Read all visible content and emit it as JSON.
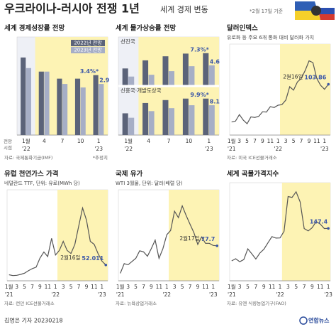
{
  "header": {
    "title": "우크라이나-러시아 전쟁 1년",
    "subtitle": "세계 경제 변동",
    "note": "*2월 17일 기준"
  },
  "chart_data": [
    {
      "type": "bar",
      "title": "세계 경제성장률 전망",
      "categories": [
        "1월",
        "4",
        "7",
        "10",
        "1"
      ],
      "x_groups": [
        {
          "label": "'22",
          "start": 0
        },
        {
          "label": "'23",
          "start": 4
        }
      ],
      "x_label": [
        "전망",
        "시점"
      ],
      "ylim": [
        0,
        5
      ],
      "highlight": {
        "start": 1
      },
      "legend": true,
      "panels": [
        {
          "series": [
            {
              "name": "2022년 전망",
              "color": "#5b6379",
              "values": [
                4.4,
                3.6,
                3.2,
                3.2,
                3.4
              ],
              "value_labels": [
                null,
                null,
                null,
                null,
                "3.4%*"
              ]
            },
            {
              "name": "2023년 전망",
              "color": "#a6aec6",
              "values": [
                3.8,
                3.6,
                2.9,
                2.7,
                2.9
              ],
              "value_labels": [
                null,
                null,
                null,
                null,
                "2.9"
              ]
            }
          ]
        }
      ],
      "source": "자료: 국제통화기금(IMF)",
      "footnote": "*추정치"
    },
    {
      "type": "bar",
      "title": "세계 물가상승률 전망",
      "categories": [
        "1월",
        "4",
        "7",
        "10",
        "1"
      ],
      "x_groups": [
        {
          "label": "'22",
          "start": 0
        },
        {
          "label": "'23",
          "start": 4
        }
      ],
      "highlight": {
        "start": 1
      },
      "legend": false,
      "panels": [
        {
          "title": "선진국",
          "ylim": [
            0,
            9
          ],
          "series": [
            {
              "color": "#5b6379",
              "values": [
                3.9,
                5.7,
                6.6,
                7.2,
                7.3
              ],
              "value_labels": [
                null,
                null,
                null,
                null,
                "7.3%*"
              ]
            },
            {
              "color": "#a6aec6",
              "values": [
                2.1,
                2.5,
                3.3,
                4.4,
                4.6
              ],
              "value_labels": [
                null,
                null,
                null,
                null,
                "4.6"
              ]
            }
          ]
        },
        {
          "title": "신흥국·개발도상국",
          "ylim": [
            0,
            11
          ],
          "series": [
            {
              "color": "#5b6379",
              "values": [
                5.9,
                8.7,
                9.5,
                9.9,
                9.9
              ],
              "value_labels": [
                null,
                null,
                null,
                null,
                "9.9%*"
              ]
            },
            {
              "color": "#a6aec6",
              "values": [
                4.7,
                6.5,
                7.3,
                8.1,
                8.1
              ],
              "value_labels": [
                null,
                null,
                null,
                null,
                "8.1"
              ]
            }
          ]
        }
      ]
    },
    {
      "type": "line",
      "title": "달러인덱스",
      "subtitle": "유로화 등 주요 6개 통화 대비 달러화 가치",
      "categories": [
        "1월",
        null,
        "3",
        null,
        "5",
        null,
        "7",
        null,
        "9",
        null,
        "11",
        null,
        "1",
        null,
        "3",
        null,
        "5",
        null,
        "7",
        null,
        "9",
        null,
        "11",
        null,
        "1",
        null
      ],
      "x_groups": [
        {
          "label": "'21",
          "start": 0
        },
        {
          "label": "'22",
          "start": 12
        },
        {
          "label": "'23",
          "start": 24
        }
      ],
      "highlight": {
        "start": 13
      },
      "color": "#555555",
      "ylim": [
        86,
        118
      ],
      "values": [
        90.6,
        90.9,
        93.2,
        91.3,
        90.0,
        92.4,
        92.2,
        92.6,
        94.2,
        94.1,
        96.0,
        95.7,
        96.5,
        96.7,
        98.3,
        103.0,
        101.8,
        104.7,
        105.9,
        108.7,
        112.1,
        111.5,
        105.9,
        103.5,
        102.1,
        103.86
      ],
      "annotation": {
        "date": "2월16일",
        "value": 103.86
      },
      "source": "자료: 미국 ICE선물거래소"
    },
    {
      "type": "line",
      "title": "유럽 천연가스 가격",
      "subtitle": "네덜란드 TTF, 단위: 유로(MWh 당)",
      "categories": [
        "1월",
        null,
        "3",
        null,
        "5",
        null,
        "7",
        null,
        "9",
        null,
        "11",
        null,
        "1",
        null,
        "3",
        null,
        "5",
        null,
        "7",
        null,
        "9",
        null,
        "11",
        null,
        "1",
        null
      ],
      "x_groups": [
        {
          "label": "'21",
          "start": 0
        },
        {
          "label": "'22",
          "start": 12
        },
        {
          "label": "'23",
          "start": 24
        }
      ],
      "highlight": {
        "start": 13
      },
      "color": "#555555",
      "ylim": [
        0,
        300
      ],
      "values": [
        20,
        17,
        18,
        21,
        25,
        33,
        40,
        45,
        75,
        95,
        80,
        140,
        85,
        100,
        130,
        100,
        90,
        120,
        180,
        240,
        200,
        130,
        120,
        90,
        65,
        52.011
      ],
      "annotation": {
        "date": "2월16일",
        "value": 52.011
      },
      "source": "자료: 런던 ICE선물거래소"
    },
    {
      "type": "line",
      "title": "국제 유가",
      "subtitle": "WTI 3월물, 단위: 달러(배럴 당)",
      "categories": [
        "1월",
        null,
        "3",
        null,
        "5",
        null,
        "7",
        null,
        "9",
        null,
        "11",
        null,
        "1",
        null,
        "3",
        null,
        "5",
        null,
        "7",
        null,
        "9",
        null,
        "11",
        null,
        "1",
        null
      ],
      "x_groups": [
        {
          "label": "'21",
          "start": 0
        },
        {
          "label": "'22",
          "start": 12
        },
        {
          "label": "'23",
          "start": 24
        }
      ],
      "highlight": {
        "start": 13
      },
      "color": "#555555",
      "ylim": [
        45,
        130
      ],
      "values": [
        52,
        61,
        60,
        63,
        66,
        73,
        72,
        68,
        75,
        83,
        66,
        75,
        88,
        92,
        110,
        104,
        115,
        106,
        98,
        90,
        79,
        86,
        80,
        80,
        78,
        77.7
      ],
      "annotation": {
        "date": "2월17일",
        "value": 77.7
      },
      "source": "자료: 뉴욕상업거래소"
    },
    {
      "type": "line",
      "title": "세계 곡물가격지수",
      "categories": [
        "1월",
        null,
        "3",
        null,
        "5",
        null,
        "7",
        null,
        "9",
        null,
        "11",
        null,
        "1",
        null,
        "3",
        null,
        "5",
        null,
        "7",
        null,
        "9",
        null,
        "11",
        null,
        "1"
      ],
      "x_groups": [
        {
          "label": "'21",
          "start": 0
        },
        {
          "label": "'22",
          "start": 12
        },
        {
          "label": "'23",
          "start": 24
        }
      ],
      "highlight": {
        "start": 13
      },
      "color": "#555555",
      "ylim": [
        110,
        180
      ],
      "values": [
        124.2,
        125.7,
        123.6,
        125.1,
        132.8,
        129.3,
        125.5,
        129.8,
        132.5,
        137.1,
        141.5,
        140.5,
        140.6,
        145.3,
        170.1,
        169.5,
        173.5,
        166.3,
        147.3,
        145.6,
        147.9,
        152.3,
        150.5,
        147.3,
        147.4
      ],
      "annotation": {
        "value": 147.4
      },
      "source": "자료: 유엔 식량농업기구(FAO)"
    }
  ],
  "footer": {
    "credit": "김영은 기자 20230218",
    "logo": "연합뉴스"
  }
}
